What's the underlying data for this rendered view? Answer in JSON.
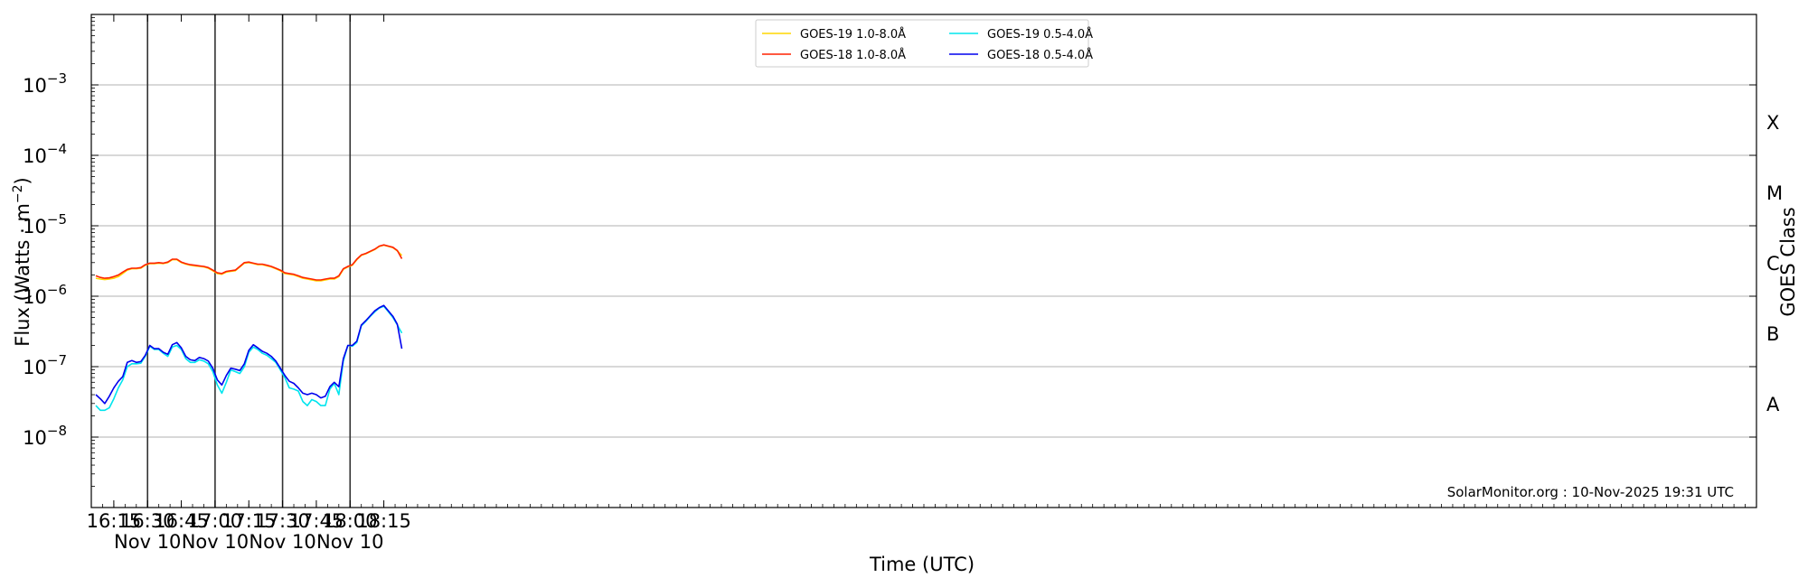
{
  "chart_data": {
    "type": "line",
    "ylabel": "Flux (Watts · m⁻²)",
    "y2label": "GOES Class",
    "xlabel": "Time (UTC)",
    "yscale": "log",
    "ylim": [
      1e-09,
      0.01
    ],
    "xlim_minutes": [
      1,
      0
    ],
    "grid": "horizontal",
    "legend_position": "top-center",
    "credit": "SolarMonitor.org : 10-Nov-2025 19:31 UTC",
    "y_ticks": [
      {
        "label": "10",
        "exp": "−8",
        "value": 1e-08
      },
      {
        "label": "10",
        "exp": "−7",
        "value": 1e-07
      },
      {
        "label": "10",
        "exp": "−6",
        "value": 1e-06
      },
      {
        "label": "10",
        "exp": "−5",
        "value": 1e-05
      },
      {
        "label": "10",
        "exp": "−4",
        "value": 0.0001
      },
      {
        "label": "10",
        "exp": "−3",
        "value": 0.001
      }
    ],
    "x_ticks": [
      {
        "time": "16:15",
        "date": ""
      },
      {
        "time": "16:30",
        "date": "Nov 10"
      },
      {
        "time": "16:45",
        "date": ""
      },
      {
        "time": "17:00",
        "date": "Nov 10"
      },
      {
        "time": "17:15",
        "date": ""
      },
      {
        "time": "17:30",
        "date": "Nov 10"
      },
      {
        "time": "17:45",
        "date": ""
      },
      {
        "time": "18:00",
        "date": "Nov 10"
      },
      {
        "time": "18:15",
        "date": ""
      }
    ],
    "vertical_lines": [
      "16:30",
      "17:00",
      "17:30",
      "18:00"
    ],
    "goes_classes": [
      {
        "label": "A",
        "value": 3e-08
      },
      {
        "label": "B",
        "value": 3e-07
      },
      {
        "label": "C",
        "value": 3e-06
      },
      {
        "label": "M",
        "value": 3e-05
      },
      {
        "label": "X",
        "value": 0.0003
      }
    ],
    "x": [
      "16:07",
      "16:09",
      "16:11",
      "16:13",
      "16:15",
      "16:17",
      "16:19",
      "16:21",
      "16:23",
      "16:25",
      "16:27",
      "16:29",
      "16:31",
      "16:33",
      "16:35",
      "16:37",
      "16:39",
      "16:41",
      "16:43",
      "16:45",
      "16:47",
      "16:49",
      "16:51",
      "16:53",
      "16:55",
      "16:57",
      "16:59",
      "17:01",
      "17:03",
      "17:05",
      "17:07",
      "17:09",
      "17:11",
      "17:13",
      "17:15",
      "17:17",
      "17:19",
      "17:21",
      "17:23",
      "17:25",
      "17:27",
      "17:29",
      "17:31",
      "17:33",
      "17:35",
      "17:37",
      "17:39",
      "17:41",
      "17:43",
      "17:45",
      "17:47",
      "17:49",
      "17:51",
      "17:53",
      "17:55",
      "17:57",
      "17:59",
      "18:01",
      "18:03",
      "18:05",
      "18:07",
      "18:09",
      "18:11",
      "18:13",
      "18:15",
      "18:17",
      "18:19",
      "18:21",
      "18:23"
    ],
    "series": [
      {
        "name": "GOES-19 1.0-8.0Å",
        "color": "#ffd700",
        "values": [
          1.8e-06,
          1.75e-06,
          1.72e-06,
          1.75e-06,
          1.8e-06,
          1.9e-06,
          2.1e-06,
          2.35e-06,
          2.45e-06,
          2.45e-06,
          2.5e-06,
          2.75e-06,
          2.9e-06,
          2.9e-06,
          2.95e-06,
          2.9e-06,
          3e-06,
          3.3e-06,
          3.3e-06,
          3e-06,
          2.85e-06,
          2.75e-06,
          2.7e-06,
          2.65e-06,
          2.6e-06,
          2.5e-06,
          2.3e-06,
          2.1e-06,
          2.05e-06,
          2.2e-06,
          2.25e-06,
          2.3e-06,
          2.6e-06,
          2.95e-06,
          3e-06,
          2.9e-06,
          2.8e-06,
          2.8e-06,
          2.7e-06,
          2.6e-06,
          2.45e-06,
          2.3e-06,
          2.1e-06,
          2.05e-06,
          2e-06,
          1.9e-06,
          1.8e-06,
          1.75e-06,
          1.7e-06,
          1.65e-06,
          1.65e-06,
          1.7e-06,
          1.75e-06,
          1.75e-06,
          1.9e-06,
          2.4e-06,
          2.6e-06,
          2.75e-06,
          3.3e-06,
          3.8e-06,
          4e-06,
          4.3e-06,
          4.6e-06,
          5.1e-06,
          5.3e-06,
          5.1e-06,
          4.9e-06,
          4.4e-06,
          3.8e-06
        ]
      },
      {
        "name": "GOES-18 1.0-8.0Å",
        "color": "#ff2200",
        "values": [
          1.95e-06,
          1.85e-06,
          1.8e-06,
          1.82e-06,
          1.9e-06,
          2e-06,
          2.2e-06,
          2.4e-06,
          2.5e-06,
          2.5e-06,
          2.55e-06,
          2.8e-06,
          2.95e-06,
          2.95e-06,
          3e-06,
          2.95e-06,
          3.05e-06,
          3.35e-06,
          3.35e-06,
          3.05e-06,
          2.9e-06,
          2.8e-06,
          2.75e-06,
          2.7e-06,
          2.65e-06,
          2.55e-06,
          2.35e-06,
          2.15e-06,
          2.1e-06,
          2.25e-06,
          2.3e-06,
          2.35e-06,
          2.65e-06,
          3e-06,
          3.05e-06,
          2.95e-06,
          2.85e-06,
          2.85e-06,
          2.75e-06,
          2.65e-06,
          2.5e-06,
          2.35e-06,
          2.15e-06,
          2.1e-06,
          2.05e-06,
          1.95e-06,
          1.85e-06,
          1.8e-06,
          1.75e-06,
          1.7e-06,
          1.7e-06,
          1.75e-06,
          1.8e-06,
          1.8e-06,
          1.95e-06,
          2.45e-06,
          2.65e-06,
          2.8e-06,
          3.35e-06,
          3.85e-06,
          4.05e-06,
          4.35e-06,
          4.65e-06,
          5.15e-06,
          5.35e-06,
          5.15e-06,
          4.95e-06,
          4.45e-06,
          3.4e-06
        ]
      },
      {
        "name": "GOES-19 0.5-4.0Å",
        "color": "#00e5ee",
        "values": [
          2.8e-08,
          2.4e-08,
          2.4e-08,
          2.6e-08,
          3.5e-08,
          5e-08,
          6.5e-08,
          1e-07,
          1.1e-07,
          1.1e-07,
          1.12e-07,
          1.4e-07,
          1.95e-07,
          1.75e-07,
          1.75e-07,
          1.55e-07,
          1.4e-07,
          1.9e-07,
          2e-07,
          1.75e-07,
          1.3e-07,
          1.15e-07,
          1.15e-07,
          1.25e-07,
          1.2e-07,
          1.1e-07,
          8.5e-08,
          5.5e-08,
          4.2e-08,
          6e-08,
          9e-08,
          8.5e-08,
          8e-08,
          1e-07,
          1.6e-07,
          1.9e-07,
          1.75e-07,
          1.55e-07,
          1.45e-07,
          1.3e-07,
          1.15e-07,
          9e-08,
          7e-08,
          5e-08,
          4.8e-08,
          4.5e-08,
          3.2e-08,
          2.8e-08,
          3.4e-08,
          3.2e-08,
          2.8e-08,
          2.8e-08,
          4.8e-08,
          5.8e-08,
          4e-08,
          1.2e-07,
          2e-07,
          1.95e-07,
          2.2e-07,
          3.8e-07,
          4.4e-07,
          5.2e-07,
          6e-07,
          6.8e-07,
          7.2e-07,
          6e-07,
          5e-07,
          3.9e-07,
          3e-07
        ]
      },
      {
        "name": "GOES-18 0.5-4.0Å",
        "color": "#0000ee",
        "values": [
          4e-08,
          3.5e-08,
          3e-08,
          3.8e-08,
          5e-08,
          6.2e-08,
          7.2e-08,
          1.15e-07,
          1.22e-07,
          1.15e-07,
          1.18e-07,
          1.45e-07,
          2e-07,
          1.8e-07,
          1.8e-07,
          1.6e-07,
          1.5e-07,
          2.05e-07,
          2.2e-07,
          1.85e-07,
          1.4e-07,
          1.25e-07,
          1.22e-07,
          1.35e-07,
          1.3e-07,
          1.2e-07,
          9.5e-08,
          6.5e-08,
          5.5e-08,
          7.5e-08,
          9.5e-08,
          9.2e-08,
          8.8e-08,
          1.1e-07,
          1.7e-07,
          2.05e-07,
          1.85e-07,
          1.65e-07,
          1.55e-07,
          1.4e-07,
          1.2e-07,
          9.5e-08,
          7.5e-08,
          6.2e-08,
          5.8e-08,
          5e-08,
          4.2e-08,
          4e-08,
          4.2e-08,
          4e-08,
          3.6e-08,
          3.8e-08,
          5.2e-08,
          6e-08,
          5.2e-08,
          1.3e-07,
          2e-07,
          2e-07,
          2.3e-07,
          3.9e-07,
          4.5e-07,
          5.3e-07,
          6.2e-07,
          6.9e-07,
          7.4e-07,
          6.2e-07,
          5.2e-07,
          4e-07,
          1.8e-07
        ]
      }
    ]
  }
}
